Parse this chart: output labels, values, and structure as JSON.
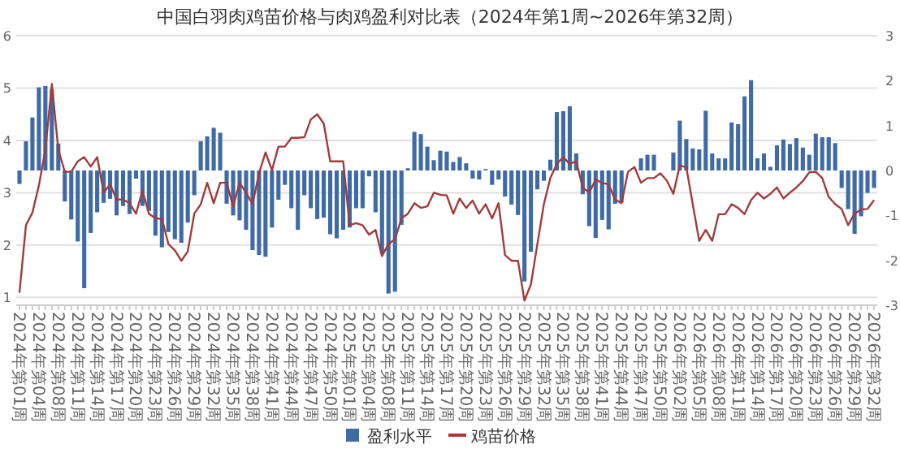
{
  "chart_data": {
    "type": "bar",
    "title": "中国白羽肉鸡苗价格与肉鸡盈利对比表（2024年第1周~2026年第32周）",
    "categories": [
      "2024年第01周",
      null,
      null,
      "2024年第04周",
      null,
      null,
      "2024年第08周",
      null,
      null,
      "2024年第11周",
      null,
      null,
      "2024年第14周",
      null,
      null,
      "2024年第17周",
      null,
      null,
      "2024年第20周",
      null,
      null,
      "2024年第23周",
      null,
      null,
      "2024年第26周",
      null,
      null,
      "2024年第29周",
      null,
      null,
      "2024年第32周",
      null,
      null,
      "2024年第35周",
      null,
      null,
      "2024年第38周",
      null,
      null,
      "2024年第41周",
      null,
      null,
      "2024年第44周",
      null,
      null,
      "2024年第47周",
      null,
      null,
      "2024年第50周",
      null,
      null,
      "2025年第01周",
      null,
      null,
      "2025年第04周",
      null,
      null,
      "2025年第08周",
      null,
      null,
      "2025年第11周",
      null,
      null,
      "2025年第14周",
      null,
      null,
      "2025年第17周",
      null,
      null,
      "2025年第20周",
      null,
      null,
      "2025年第23周",
      null,
      null,
      "2025年第26周",
      null,
      null,
      "2025年第29周",
      null,
      null,
      "2025年第32周",
      null,
      null,
      "2025年第35周",
      null,
      null,
      "2025年第38周",
      null,
      null,
      "2025年第41周",
      null,
      null,
      "2025年第44周",
      null,
      null,
      "2025年第47周",
      null,
      null,
      "2025年第50周",
      null,
      null,
      "2026年第02周",
      null,
      null,
      "2026年第05周",
      null,
      null,
      "2026年第08周",
      null,
      null,
      "2026年第11周",
      null,
      null,
      "2026年第14周",
      null,
      null,
      "2026年第17周",
      null,
      null,
      "2026年第20周",
      null,
      null,
      "2026年第23周",
      null,
      null,
      "2026年第26周",
      null,
      null,
      "2026年第29周",
      null,
      null,
      "2026年第32周"
    ],
    "series": [
      {
        "name": "盈利水平",
        "axis": "y2",
        "color": "#3e6aa6",
        "values": [
          -0.3,
          0.65,
          1.18,
          1.85,
          1.88,
          1.8,
          0.6,
          -0.69,
          -1.09,
          -1.58,
          -2.62,
          -1.39,
          -0.93,
          -0.72,
          -0.63,
          -1.0,
          -0.79,
          -0.97,
          -0.18,
          -0.79,
          -0.9,
          -1.45,
          -1.71,
          -1.37,
          -1.53,
          -1.61,
          -1.16,
          -0.55,
          0.65,
          0.76,
          0.95,
          0.84,
          -0.74,
          -1.0,
          -1.11,
          -1.32,
          -1.77,
          -1.88,
          -1.92,
          -1.27,
          -0.65,
          -0.32,
          -0.84,
          -1.32,
          -0.55,
          -0.84,
          -1.08,
          -1.05,
          -1.42,
          -1.51,
          -1.32,
          -1.27,
          -0.84,
          -0.84,
          -0.13,
          -0.93,
          -1.85,
          -2.74,
          -2.7,
          -1.21,
          0.05,
          0.86,
          0.81,
          0.53,
          0.23,
          0.44,
          0.42,
          0.19,
          0.3,
          0.16,
          -0.18,
          -0.2,
          0.03,
          -0.32,
          -0.2,
          -0.58,
          -0.76,
          -0.99,
          -2.47,
          -1.81,
          -0.42,
          -0.23,
          0.24,
          1.3,
          1.32,
          1.43,
          0.38,
          -0.53,
          -1.24,
          -1.5,
          -1.1,
          -1.31,
          -0.74,
          -0.71,
          null,
          null,
          0.27,
          0.35,
          0.35,
          null,
          null,
          0.4,
          1.11,
          0.7,
          0.49,
          0.47,
          1.33,
          0.38,
          0.27,
          0.27,
          1.07,
          1.03,
          1.65,
          2.01,
          0.27,
          0.38,
          0.08,
          0.56,
          0.69,
          0.59,
          0.72,
          0.51,
          0.35,
          0.82,
          0.74,
          0.74,
          0.61,
          -0.39,
          -0.86,
          -1.41,
          -1.02,
          -0.5,
          -0.39
        ]
      },
      {
        "name": "鸡苗价格",
        "type": "line",
        "color": "#a33b3b",
        "values": [
          1.09,
          2.38,
          2.62,
          3.14,
          3.82,
          5.08,
          3.82,
          3.4,
          3.4,
          3.6,
          3.68,
          3.5,
          3.68,
          3.0,
          3.16,
          2.87,
          2.87,
          2.8,
          2.6,
          3.04,
          2.6,
          2.51,
          2.5,
          2.02,
          1.9,
          1.7,
          1.88,
          2.6,
          2.78,
          3.19,
          2.8,
          3.19,
          3.19,
          2.74,
          3.19,
          3.0,
          2.78,
          3.37,
          3.77,
          3.43,
          3.88,
          3.88,
          4.05,
          4.05,
          4.06,
          4.4,
          4.5,
          4.32,
          3.6,
          3.6,
          3.6,
          2.38,
          2.42,
          2.38,
          2.2,
          2.29,
          1.79,
          2.02,
          2.11,
          2.51,
          2.6,
          2.8,
          2.71,
          2.74,
          3.0,
          2.96,
          2.95,
          2.6,
          2.89,
          2.71,
          2.85,
          2.6,
          2.78,
          2.51,
          2.8,
          1.81,
          1.7,
          1.7,
          0.94,
          1.25,
          2.02,
          2.78,
          3.28,
          3.55,
          3.68,
          3.55,
          3.6,
          3.1,
          3.0,
          3.25,
          3.19,
          3.16,
          2.87,
          2.8,
          3.4,
          3.49,
          3.19,
          3.28,
          3.28,
          3.37,
          3.23,
          2.98,
          3.52,
          3.49,
          2.78,
          2.08,
          2.29,
          2.08,
          2.59,
          2.59,
          2.78,
          2.71,
          2.59,
          2.86,
          3.0,
          2.89,
          2.98,
          3.1,
          2.89,
          3.0,
          3.1,
          3.22,
          3.39,
          3.4,
          3.28,
          2.92,
          2.78,
          2.69,
          2.38,
          2.6,
          2.68,
          2.69,
          2.86
        ]
      }
    ],
    "ylim": [
      0.85,
      6
    ],
    "yticks": [
      1,
      2,
      3,
      4,
      5,
      6
    ],
    "y2lim": [
      -3,
      3
    ],
    "y2ticks": [
      -3,
      -2,
      -1,
      0,
      1,
      2,
      3
    ],
    "grid": "y",
    "legend": "bottom"
  }
}
